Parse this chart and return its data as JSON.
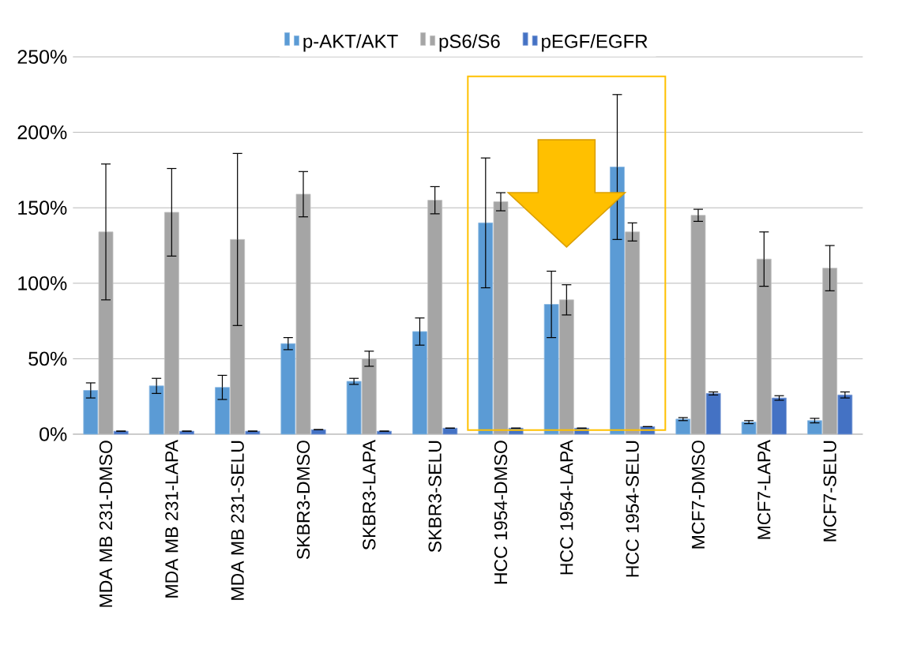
{
  "chart_data": {
    "type": "bar",
    "categories": [
      "MDA MB 231-DMSO",
      "MDA MB 231-LAPA",
      "MDA MB 231-SELU",
      "SKBR3-DMSO",
      "SKBR3-LAPA",
      "SKBR3-SELU",
      "HCC 1954-DMSO",
      "HCC 1954-LAPA",
      "HCC 1954-SELU",
      "MCF7-DMSO",
      "MCF7-LAPA",
      "MCF7-SELU"
    ],
    "series": [
      {
        "name": "p-AKT/AKT",
        "color": "#5b9bd5",
        "values": [
          29,
          32,
          31,
          60,
          35,
          68,
          140,
          86,
          177,
          10,
          8,
          9
        ],
        "errors": [
          5,
          5,
          8,
          4,
          2,
          9,
          43,
          22,
          48,
          1,
          1,
          1.5
        ]
      },
      {
        "name": "pS6/S6",
        "color": "#a5a5a5",
        "values": [
          134,
          147,
          129,
          159,
          50,
          155,
          154,
          89,
          134,
          145,
          116,
          110
        ],
        "errors": [
          45,
          29,
          57,
          15,
          5,
          9,
          6,
          10,
          6,
          4,
          18,
          15
        ]
      },
      {
        "name": "pEGF/EGFR",
        "color": "#4472c4",
        "values": [
          2,
          2,
          2,
          3,
          2,
          4,
          4,
          4,
          5,
          27,
          24,
          26
        ],
        "errors": [
          null,
          null,
          null,
          null,
          null,
          null,
          null,
          null,
          null,
          1,
          1.5,
          2
        ]
      }
    ],
    "ylim": [
      0,
      250
    ],
    "yticks": [
      {
        "value": 0,
        "label": "0%"
      },
      {
        "value": 50,
        "label": "50%"
      },
      {
        "value": 100,
        "label": "100%"
      },
      {
        "value": 150,
        "label": "150%"
      },
      {
        "value": 200,
        "label": "200%"
      },
      {
        "value": 250,
        "label": "250%"
      }
    ],
    "grid": "y",
    "legend": "top"
  }
}
